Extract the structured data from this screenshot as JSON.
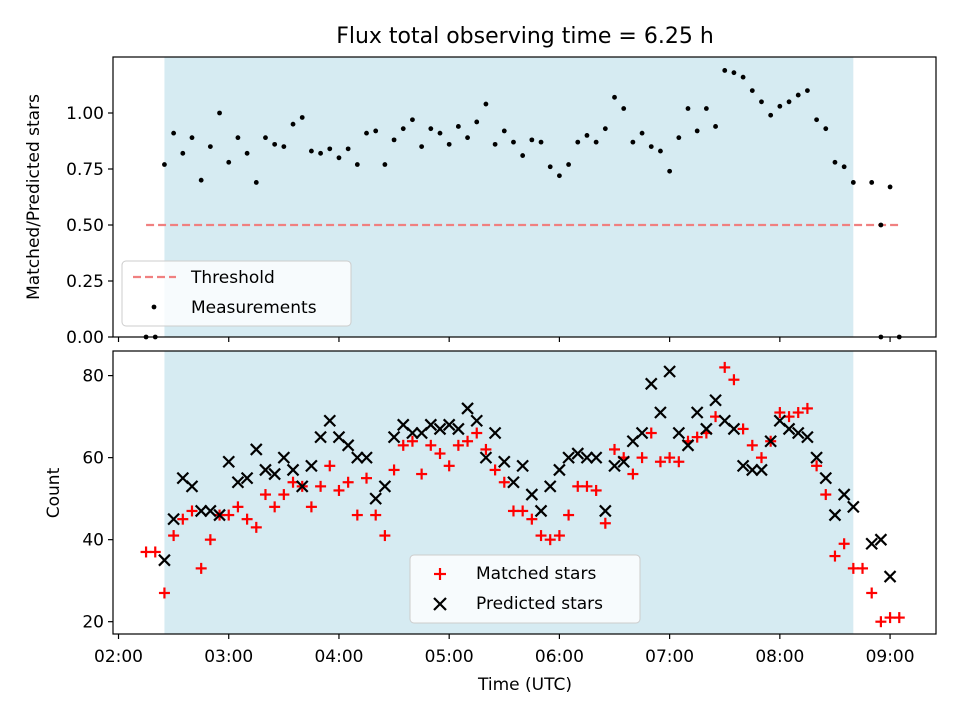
{
  "chart_data": [
    {
      "type": "scatter",
      "title": "Flux total observing time = 6.25 h",
      "xlabel": "",
      "ylabel": "Matched/Predicted stars",
      "ylim": [
        0,
        1.25
      ],
      "yticks": [
        "0.00",
        "0.25",
        "0.50",
        "0.75",
        "1.00"
      ],
      "shaded_interval": [
        "02:25",
        "08:40"
      ],
      "threshold": {
        "name": "Threshold",
        "value": 0.5,
        "x_range": [
          "02:15",
          "09:05"
        ],
        "color": "#f08080"
      },
      "legend": {
        "position": "lower-left",
        "entries": [
          "Threshold",
          "Measurements"
        ]
      },
      "series": [
        {
          "name": "Measurements",
          "color": "#000000",
          "points": [
            [
              "02:15",
              0.0
            ],
            [
              "02:20",
              0.0
            ],
            [
              "02:25",
              0.77
            ],
            [
              "02:30",
              0.91
            ],
            [
              "02:35",
              0.82
            ],
            [
              "02:40",
              0.89
            ],
            [
              "02:45",
              0.7
            ],
            [
              "02:50",
              0.85
            ],
            [
              "02:55",
              1.0
            ],
            [
              "03:00",
              0.78
            ],
            [
              "03:05",
              0.89
            ],
            [
              "03:10",
              0.82
            ],
            [
              "03:15",
              0.69
            ],
            [
              "03:20",
              0.89
            ],
            [
              "03:25",
              0.86
            ],
            [
              "03:30",
              0.85
            ],
            [
              "03:35",
              0.95
            ],
            [
              "03:40",
              0.98
            ],
            [
              "03:45",
              0.83
            ],
            [
              "03:50",
              0.82
            ],
            [
              "03:55",
              0.84
            ],
            [
              "04:00",
              0.8
            ],
            [
              "04:05",
              0.84
            ],
            [
              "04:10",
              0.77
            ],
            [
              "04:15",
              0.91
            ],
            [
              "04:20",
              0.92
            ],
            [
              "04:25",
              0.77
            ],
            [
              "04:30",
              0.88
            ],
            [
              "04:35",
              0.93
            ],
            [
              "04:40",
              0.97
            ],
            [
              "04:45",
              0.85
            ],
            [
              "04:50",
              0.93
            ],
            [
              "04:55",
              0.91
            ],
            [
              "05:00",
              0.86
            ],
            [
              "05:05",
              0.94
            ],
            [
              "05:10",
              0.89
            ],
            [
              "05:15",
              0.96
            ],
            [
              "05:20",
              1.04
            ],
            [
              "05:25",
              0.86
            ],
            [
              "05:30",
              0.92
            ],
            [
              "05:35",
              0.87
            ],
            [
              "05:40",
              0.81
            ],
            [
              "05:45",
              0.88
            ],
            [
              "05:50",
              0.87
            ],
            [
              "05:55",
              0.76
            ],
            [
              "06:00",
              0.72
            ],
            [
              "06:05",
              0.77
            ],
            [
              "06:10",
              0.87
            ],
            [
              "06:15",
              0.9
            ],
            [
              "06:20",
              0.87
            ],
            [
              "06:25",
              0.93
            ],
            [
              "06:30",
              1.07
            ],
            [
              "06:35",
              1.02
            ],
            [
              "06:40",
              0.87
            ],
            [
              "06:45",
              0.91
            ],
            [
              "06:50",
              0.85
            ],
            [
              "06:55",
              0.83
            ],
            [
              "07:00",
              0.74
            ],
            [
              "07:05",
              0.89
            ],
            [
              "07:10",
              1.02
            ],
            [
              "07:15",
              0.92
            ],
            [
              "07:20",
              1.02
            ],
            [
              "07:25",
              0.94
            ],
            [
              "07:30",
              1.19
            ],
            [
              "07:35",
              1.18
            ],
            [
              "07:40",
              1.16
            ],
            [
              "07:45",
              1.1
            ],
            [
              "07:50",
              1.05
            ],
            [
              "07:55",
              0.99
            ],
            [
              "08:00",
              1.03
            ],
            [
              "08:05",
              1.05
            ],
            [
              "08:10",
              1.08
            ],
            [
              "08:15",
              1.1
            ],
            [
              "08:20",
              0.97
            ],
            [
              "08:25",
              0.93
            ],
            [
              "08:30",
              0.78
            ],
            [
              "08:35",
              0.76
            ],
            [
              "08:40",
              0.69
            ],
            [
              "08:50",
              0.69
            ],
            [
              "08:55",
              0.5
            ],
            [
              "08:55",
              0.0
            ],
            [
              "09:00",
              0.67
            ],
            [
              "09:05",
              0.0
            ]
          ]
        }
      ]
    },
    {
      "type": "scatter",
      "xlabel": "Time (UTC)",
      "ylabel": "Count",
      "ylim": [
        17,
        86
      ],
      "yticks": [
        "20",
        "40",
        "60",
        "80"
      ],
      "xticks": [
        "02:00",
        "03:00",
        "04:00",
        "05:00",
        "06:00",
        "07:00",
        "08:00",
        "09:00"
      ],
      "xlim": [
        "01:57",
        "09:25"
      ],
      "shaded_interval": [
        "02:25",
        "08:40"
      ],
      "legend": {
        "position": "lower-center",
        "entries": [
          "Matched stars",
          "Predicted stars"
        ]
      },
      "series": [
        {
          "name": "Matched stars",
          "marker": "plus",
          "color": "#ff0000",
          "points": [
            [
              "02:15",
              37
            ],
            [
              "02:20",
              37
            ],
            [
              "02:25",
              27
            ],
            [
              "02:30",
              41
            ],
            [
              "02:35",
              45
            ],
            [
              "02:40",
              47
            ],
            [
              "02:45",
              33
            ],
            [
              "02:50",
              40
            ],
            [
              "02:55",
              46
            ],
            [
              "03:00",
              46
            ],
            [
              "03:05",
              48
            ],
            [
              "03:10",
              45
            ],
            [
              "03:15",
              43
            ],
            [
              "03:20",
              51
            ],
            [
              "03:25",
              48
            ],
            [
              "03:30",
              51
            ],
            [
              "03:35",
              54
            ],
            [
              "03:40",
              53
            ],
            [
              "03:45",
              48
            ],
            [
              "03:50",
              53
            ],
            [
              "03:55",
              58
            ],
            [
              "04:00",
              52
            ],
            [
              "04:05",
              54
            ],
            [
              "04:10",
              46
            ],
            [
              "04:15",
              55
            ],
            [
              "04:20",
              46
            ],
            [
              "04:25",
              41
            ],
            [
              "04:30",
              57
            ],
            [
              "04:35",
              63
            ],
            [
              "04:40",
              64
            ],
            [
              "04:45",
              56
            ],
            [
              "04:50",
              63
            ],
            [
              "04:55",
              61
            ],
            [
              "05:00",
              58
            ],
            [
              "05:05",
              63
            ],
            [
              "05:10",
              64
            ],
            [
              "05:15",
              66
            ],
            [
              "05:20",
              62
            ],
            [
              "05:25",
              57
            ],
            [
              "05:30",
              54
            ],
            [
              "05:35",
              47
            ],
            [
              "05:40",
              47
            ],
            [
              "05:45",
              45
            ],
            [
              "05:50",
              41
            ],
            [
              "05:55",
              40
            ],
            [
              "06:00",
              41
            ],
            [
              "06:05",
              46
            ],
            [
              "06:10",
              53
            ],
            [
              "06:15",
              53
            ],
            [
              "06:20",
              52
            ],
            [
              "06:25",
              44
            ],
            [
              "06:30",
              62
            ],
            [
              "06:35",
              60
            ],
            [
              "06:40",
              56
            ],
            [
              "06:45",
              60
            ],
            [
              "06:50",
              66
            ],
            [
              "06:55",
              59
            ],
            [
              "07:00",
              60
            ],
            [
              "07:05",
              59
            ],
            [
              "07:10",
              64
            ],
            [
              "07:15",
              65
            ],
            [
              "07:20",
              66
            ],
            [
              "07:25",
              70
            ],
            [
              "07:30",
              82
            ],
            [
              "07:35",
              79
            ],
            [
              "07:40",
              67
            ],
            [
              "07:45",
              63
            ],
            [
              "07:50",
              60
            ],
            [
              "07:55",
              64
            ],
            [
              "08:00",
              71
            ],
            [
              "08:05",
              70
            ],
            [
              "08:10",
              71
            ],
            [
              "08:15",
              72
            ],
            [
              "08:20",
              58
            ],
            [
              "08:25",
              51
            ],
            [
              "08:30",
              36
            ],
            [
              "08:35",
              39
            ],
            [
              "08:40",
              33
            ],
            [
              "08:45",
              33
            ],
            [
              "08:50",
              27
            ],
            [
              "08:55",
              20
            ],
            [
              "09:00",
              21
            ],
            [
              "09:05",
              21
            ]
          ]
        },
        {
          "name": "Predicted stars",
          "marker": "x",
          "color": "#000000",
          "points": [
            [
              "02:25",
              35
            ],
            [
              "02:30",
              45
            ],
            [
              "02:35",
              55
            ],
            [
              "02:40",
              53
            ],
            [
              "02:45",
              47
            ],
            [
              "02:50",
              47
            ],
            [
              "02:55",
              46
            ],
            [
              "03:00",
              59
            ],
            [
              "03:05",
              54
            ],
            [
              "03:10",
              55
            ],
            [
              "03:15",
              62
            ],
            [
              "03:20",
              57
            ],
            [
              "03:25",
              56
            ],
            [
              "03:30",
              60
            ],
            [
              "03:35",
              57
            ],
            [
              "03:40",
              53
            ],
            [
              "03:45",
              58
            ],
            [
              "03:50",
              65
            ],
            [
              "03:55",
              69
            ],
            [
              "04:00",
              65
            ],
            [
              "04:05",
              63
            ],
            [
              "04:10",
              60
            ],
            [
              "04:15",
              60
            ],
            [
              "04:20",
              50
            ],
            [
              "04:25",
              53
            ],
            [
              "04:30",
              65
            ],
            [
              "04:35",
              68
            ],
            [
              "04:40",
              66
            ],
            [
              "04:45",
              66
            ],
            [
              "04:50",
              68
            ],
            [
              "04:55",
              67
            ],
            [
              "05:00",
              68
            ],
            [
              "05:05",
              67
            ],
            [
              "05:10",
              72
            ],
            [
              "05:15",
              69
            ],
            [
              "05:20",
              60
            ],
            [
              "05:25",
              66
            ],
            [
              "05:30",
              59
            ],
            [
              "05:35",
              54
            ],
            [
              "05:40",
              58
            ],
            [
              "05:45",
              51
            ],
            [
              "05:50",
              47
            ],
            [
              "05:55",
              53
            ],
            [
              "06:00",
              57
            ],
            [
              "06:05",
              60
            ],
            [
              "06:10",
              61
            ],
            [
              "06:15",
              60
            ],
            [
              "06:20",
              60
            ],
            [
              "06:25",
              47
            ],
            [
              "06:30",
              58
            ],
            [
              "06:35",
              59
            ],
            [
              "06:40",
              64
            ],
            [
              "06:45",
              66
            ],
            [
              "06:50",
              78
            ],
            [
              "06:55",
              71
            ],
            [
              "07:00",
              81
            ],
            [
              "07:05",
              66
            ],
            [
              "07:10",
              63
            ],
            [
              "07:15",
              71
            ],
            [
              "07:20",
              67
            ],
            [
              "07:25",
              74
            ],
            [
              "07:30",
              69
            ],
            [
              "07:35",
              67
            ],
            [
              "07:40",
              58
            ],
            [
              "07:45",
              57
            ],
            [
              "07:50",
              57
            ],
            [
              "07:55",
              64
            ],
            [
              "08:00",
              69
            ],
            [
              "08:05",
              67
            ],
            [
              "08:10",
              66
            ],
            [
              "08:15",
              65
            ],
            [
              "08:20",
              60
            ],
            [
              "08:25",
              55
            ],
            [
              "08:30",
              46
            ],
            [
              "08:35",
              51
            ],
            [
              "08:40",
              48
            ],
            [
              "08:50",
              39
            ],
            [
              "08:55",
              40
            ],
            [
              "09:00",
              31
            ]
          ]
        }
      ]
    }
  ]
}
